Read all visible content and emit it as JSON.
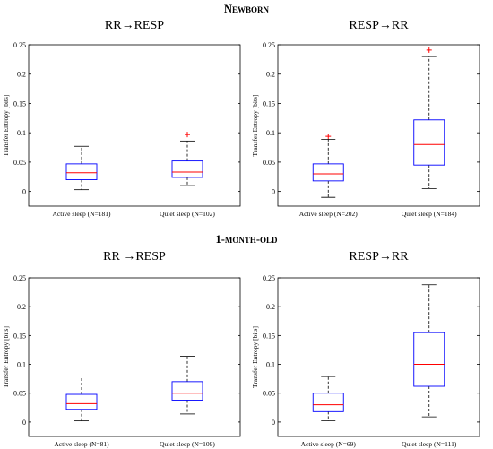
{
  "sections": [
    {
      "title": "Newborn"
    },
    {
      "title": "1-month-old"
    }
  ],
  "colors": {
    "box": "#0000ff",
    "median": "#ff0000",
    "whisker": "#000000",
    "outlier": "#ff0000",
    "axis": "#000000"
  },
  "chart_data": [
    {
      "type": "box",
      "title": "RR→RESP",
      "ylabel": "Transfer Entropy [bits]",
      "ylim": [
        -0.025,
        0.25
      ],
      "yticks": [
        0,
        0.05,
        0.1,
        0.15,
        0.2,
        0.25
      ],
      "yticklabels": [
        "0",
        "0.05",
        "0.1",
        "0.15",
        "0.2",
        "0.25"
      ],
      "categories": [
        "Active sleep (N=181)",
        "Quiet sleep (N=102)"
      ],
      "boxes": [
        {
          "whisker_low": 0.003,
          "q1": 0.02,
          "median": 0.032,
          "q3": 0.047,
          "whisker_high": 0.077,
          "outliers": []
        },
        {
          "whisker_low": 0.01,
          "q1": 0.024,
          "median": 0.033,
          "q3": 0.052,
          "whisker_high": 0.086,
          "outliers": [
            0.097
          ]
        }
      ],
      "grid": false
    },
    {
      "type": "box",
      "title": "RESP→RR",
      "ylabel": "Transfer Entropy [bits]",
      "ylim": [
        -0.025,
        0.25
      ],
      "yticks": [
        0,
        0.05,
        0.1,
        0.15,
        0.2,
        0.25
      ],
      "yticklabels": [
        "0",
        "0.05",
        "0.1",
        "0.15",
        "0.2",
        "0.25"
      ],
      "categories": [
        "Active sleep (N=202)",
        "Quiet sleep (N=184)"
      ],
      "boxes": [
        {
          "whisker_low": -0.01,
          "q1": 0.018,
          "median": 0.03,
          "q3": 0.047,
          "whisker_high": 0.089,
          "outliers": [
            0.094
          ]
        },
        {
          "whisker_low": 0.005,
          "q1": 0.045,
          "median": 0.08,
          "q3": 0.122,
          "whisker_high": 0.23,
          "outliers": [
            0.241
          ]
        }
      ],
      "grid": false
    },
    {
      "type": "box",
      "title": "RR →RESP",
      "ylabel": "Transfer Entropy [bits]",
      "ylim": [
        -0.025,
        0.25
      ],
      "yticks": [
        0,
        0.05,
        0.1,
        0.15,
        0.2,
        0.25
      ],
      "yticklabels": [
        "0",
        "0.05",
        "0.1",
        "0.15",
        "0.2",
        "0.25"
      ],
      "categories": [
        "Active sleep (N=81)",
        "Quiet sleep (N=109)"
      ],
      "boxes": [
        {
          "whisker_low": 0.002,
          "q1": 0.022,
          "median": 0.032,
          "q3": 0.048,
          "whisker_high": 0.08,
          "outliers": []
        },
        {
          "whisker_low": 0.014,
          "q1": 0.038,
          "median": 0.05,
          "q3": 0.07,
          "whisker_high": 0.114,
          "outliers": []
        }
      ],
      "grid": false
    },
    {
      "type": "box",
      "title": "RESP→RR",
      "ylabel": "Transfer Entropy [bits]",
      "ylim": [
        -0.025,
        0.25
      ],
      "yticks": [
        0,
        0.05,
        0.1,
        0.15,
        0.2,
        0.25
      ],
      "yticklabels": [
        "0",
        "0.05",
        "0.1",
        "0.15",
        "0.2",
        "0.25"
      ],
      "categories": [
        "Active sleep (N=69)",
        "Quiet sleep (N=111)"
      ],
      "boxes": [
        {
          "whisker_low": 0.002,
          "q1": 0.018,
          "median": 0.03,
          "q3": 0.05,
          "whisker_high": 0.079,
          "outliers": []
        },
        {
          "whisker_low": 0.009,
          "q1": 0.062,
          "median": 0.1,
          "q3": 0.155,
          "whisker_high": 0.238,
          "outliers": []
        }
      ],
      "grid": false
    }
  ]
}
